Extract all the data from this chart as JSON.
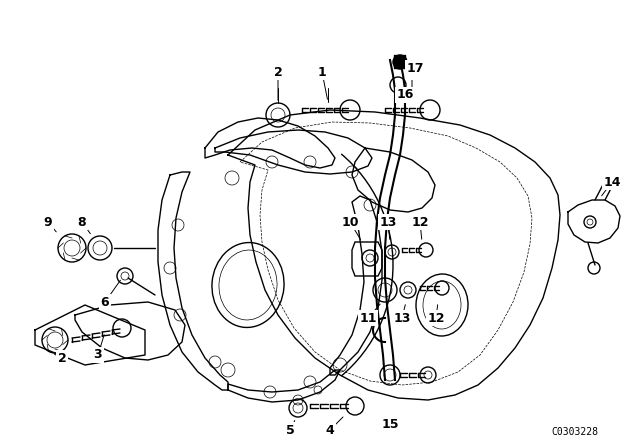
{
  "background_color": "#ffffff",
  "line_color": "#000000",
  "part_number_label": "C0303228",
  "figsize": [
    6.4,
    4.48
  ],
  "dpi": 100
}
